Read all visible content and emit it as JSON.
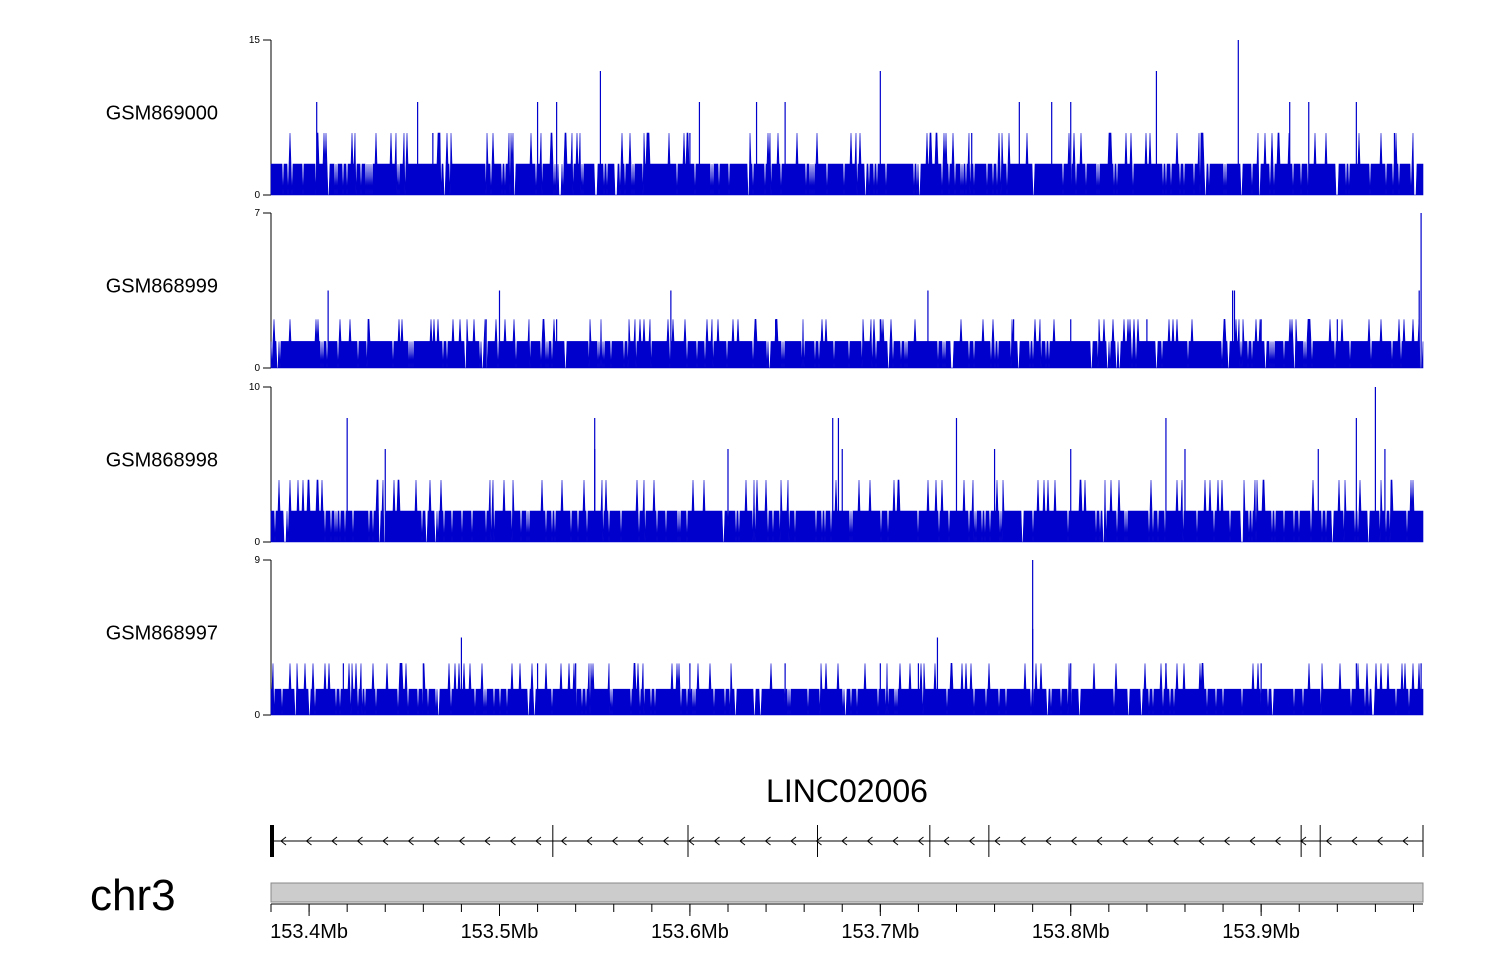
{
  "chart_data": {
    "type": "genome-tracks",
    "chromosome": "chr3",
    "region_start_mb": 153.38,
    "region_end_mb": 153.985,
    "track_color": "#0000cc",
    "tracks": [
      {
        "name": "GSM869000",
        "ymax": 15,
        "yticks": [
          "15",
          "0"
        ],
        "base_level": 3,
        "top_level": 6,
        "spikes": [
          [
            153.404,
            9
          ],
          [
            153.457,
            9
          ],
          [
            153.465,
            6
          ],
          [
            153.52,
            9
          ],
          [
            153.53,
            9
          ],
          [
            153.553,
            12
          ],
          [
            153.6,
            6
          ],
          [
            153.605,
            9
          ],
          [
            153.635,
            9
          ],
          [
            153.65,
            9
          ],
          [
            153.7,
            12
          ],
          [
            153.748,
            6
          ],
          [
            153.773,
            9
          ],
          [
            153.79,
            9
          ],
          [
            153.8,
            9
          ],
          [
            153.845,
            12
          ],
          [
            153.888,
            15
          ],
          [
            153.915,
            9
          ],
          [
            153.925,
            9
          ],
          [
            153.95,
            9
          ],
          [
            153.97,
            6
          ]
        ]
      },
      {
        "name": "GSM868999",
        "ymax": 7,
        "yticks": [
          "7",
          "0"
        ],
        "base_level": 1.2,
        "top_level": 2.2,
        "spikes": [
          [
            153.41,
            3.5
          ],
          [
            153.493,
            2.2
          ],
          [
            153.5,
            3.5
          ],
          [
            153.53,
            2.2
          ],
          [
            153.59,
            3.5
          ],
          [
            153.645,
            2.2
          ],
          [
            153.7,
            2.2
          ],
          [
            153.725,
            3.5
          ],
          [
            153.77,
            2.2
          ],
          [
            153.8,
            2.2
          ],
          [
            153.84,
            2.2
          ],
          [
            153.885,
            3.5
          ],
          [
            153.886,
            3.5
          ],
          [
            153.9,
            2.2
          ],
          [
            153.94,
            2.2
          ],
          [
            153.983,
            3.5
          ],
          [
            153.984,
            7
          ]
        ]
      },
      {
        "name": "GSM868998",
        "ymax": 10,
        "yticks": [
          "10",
          "0"
        ],
        "base_level": 2,
        "top_level": 4,
        "spikes": [
          [
            153.42,
            8
          ],
          [
            153.44,
            6
          ],
          [
            153.55,
            8
          ],
          [
            153.55,
            6
          ],
          [
            153.62,
            6
          ],
          [
            153.675,
            8
          ],
          [
            153.678,
            8
          ],
          [
            153.68,
            6
          ],
          [
            153.74,
            8
          ],
          [
            153.76,
            6
          ],
          [
            153.8,
            6
          ],
          [
            153.85,
            8
          ],
          [
            153.86,
            6
          ],
          [
            153.93,
            6
          ],
          [
            153.95,
            8
          ],
          [
            153.96,
            10
          ],
          [
            153.965,
            6
          ]
        ]
      },
      {
        "name": "GSM868997",
        "ymax": 9,
        "yticks": [
          "9",
          "0"
        ],
        "base_level": 1.5,
        "top_level": 3,
        "spikes": [
          [
            153.418,
            3
          ],
          [
            153.46,
            3
          ],
          [
            153.48,
            4.5
          ],
          [
            153.52,
            3
          ],
          [
            153.54,
            3
          ],
          [
            153.6,
            3
          ],
          [
            153.65,
            3
          ],
          [
            153.7,
            3
          ],
          [
            153.72,
            3
          ],
          [
            153.73,
            4.5
          ],
          [
            153.78,
            9
          ],
          [
            153.78,
            5
          ],
          [
            153.8,
            3
          ],
          [
            153.85,
            3
          ],
          [
            153.9,
            3
          ],
          [
            153.95,
            3
          ],
          [
            153.984,
            3
          ]
        ]
      }
    ],
    "gene": {
      "name": "LINC02006",
      "strand": "-",
      "exon_boundaries_mb": [
        153.38,
        153.528,
        153.599,
        153.667,
        153.726,
        153.757,
        153.921,
        153.931,
        153.985
      ]
    },
    "xticks_mb": [
      153.4,
      153.5,
      153.6,
      153.7,
      153.8,
      153.9
    ],
    "xtick_labels": [
      "153.4Mb",
      "153.5Mb",
      "153.6Mb",
      "153.7Mb",
      "153.8Mb",
      "153.9Mb"
    ],
    "minor_tick_step_mb": 0.02
  }
}
